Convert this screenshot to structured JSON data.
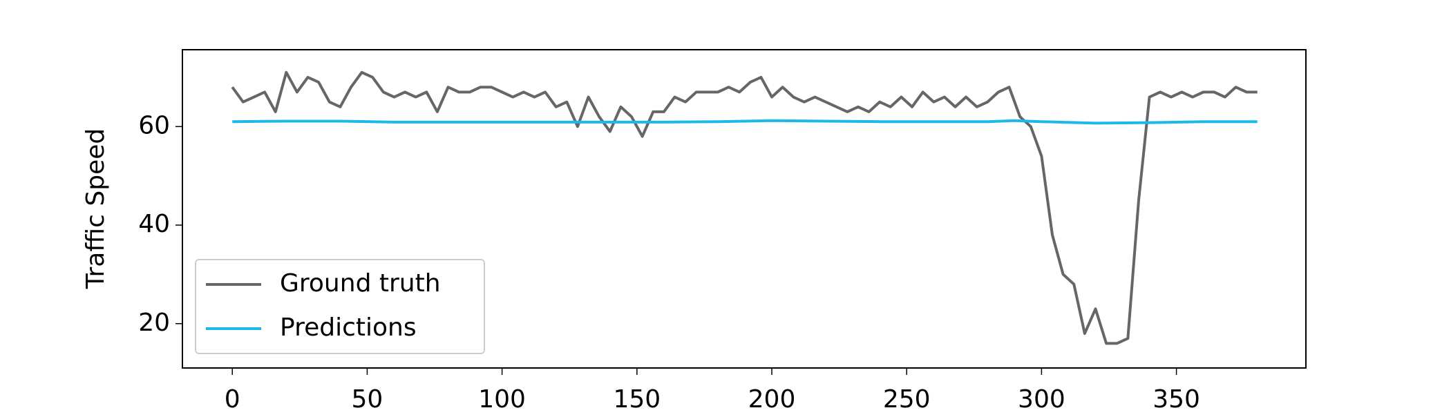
{
  "chart_data": {
    "type": "line",
    "ylabel": "Traffic Speed",
    "xlim": [
      -18.5,
      398
    ],
    "ylim": [
      11,
      75.6
    ],
    "xticks": [
      0,
      50,
      100,
      150,
      200,
      250,
      300,
      350
    ],
    "yticks": [
      20,
      40,
      60
    ],
    "grid": false,
    "legend": "lower left",
    "series": [
      {
        "name": "Ground truth",
        "color": "#666666",
        "x": [
          0,
          4,
          8,
          12,
          16,
          20,
          24,
          28,
          32,
          36,
          40,
          44,
          48,
          52,
          56,
          60,
          64,
          68,
          72,
          76,
          80,
          84,
          88,
          92,
          96,
          100,
          104,
          108,
          112,
          116,
          120,
          124,
          128,
          132,
          136,
          140,
          144,
          148,
          152,
          156,
          160,
          164,
          168,
          172,
          176,
          180,
          184,
          188,
          192,
          196,
          200,
          204,
          208,
          212,
          216,
          220,
          224,
          228,
          232,
          236,
          240,
          244,
          248,
          252,
          256,
          260,
          264,
          268,
          272,
          276,
          280,
          284,
          288,
          292,
          296,
          300,
          304,
          308,
          312,
          316,
          320,
          324,
          328,
          332,
          336,
          340,
          344,
          348,
          352,
          356,
          360,
          364,
          368,
          372,
          376,
          380
        ],
        "values": [
          68,
          65,
          66,
          67,
          63,
          71,
          67,
          70,
          69,
          65,
          64,
          68,
          71,
          70,
          67,
          66,
          67,
          66,
          67,
          63,
          68,
          67,
          67,
          68,
          68,
          67,
          66,
          67,
          66,
          67,
          64,
          65,
          60,
          66,
          62,
          59,
          64,
          62,
          58,
          63,
          63,
          66,
          65,
          67,
          67,
          67,
          68,
          67,
          69,
          70,
          66,
          68,
          66,
          65,
          66,
          65,
          64,
          63,
          64,
          63,
          65,
          64,
          66,
          64,
          67,
          65,
          66,
          64,
          66,
          64,
          65,
          67,
          68,
          62,
          60,
          54,
          38,
          30,
          28,
          18,
          23,
          16,
          16,
          17,
          45,
          66,
          67,
          66,
          67,
          66,
          67,
          67,
          66,
          68,
          67,
          67
        ]
      },
      {
        "name": "Predictions",
        "color": "#1cb8ec",
        "x": [
          0,
          20,
          40,
          60,
          80,
          100,
          120,
          140,
          160,
          180,
          200,
          220,
          240,
          260,
          280,
          290,
          300,
          320,
          340,
          360,
          380
        ],
        "values": [
          61,
          61.1,
          61.1,
          60.9,
          60.9,
          60.9,
          60.9,
          60.9,
          60.9,
          61,
          61.2,
          61.1,
          61,
          61,
          61,
          61.2,
          61,
          60.7,
          60.8,
          61,
          61
        ]
      }
    ]
  }
}
